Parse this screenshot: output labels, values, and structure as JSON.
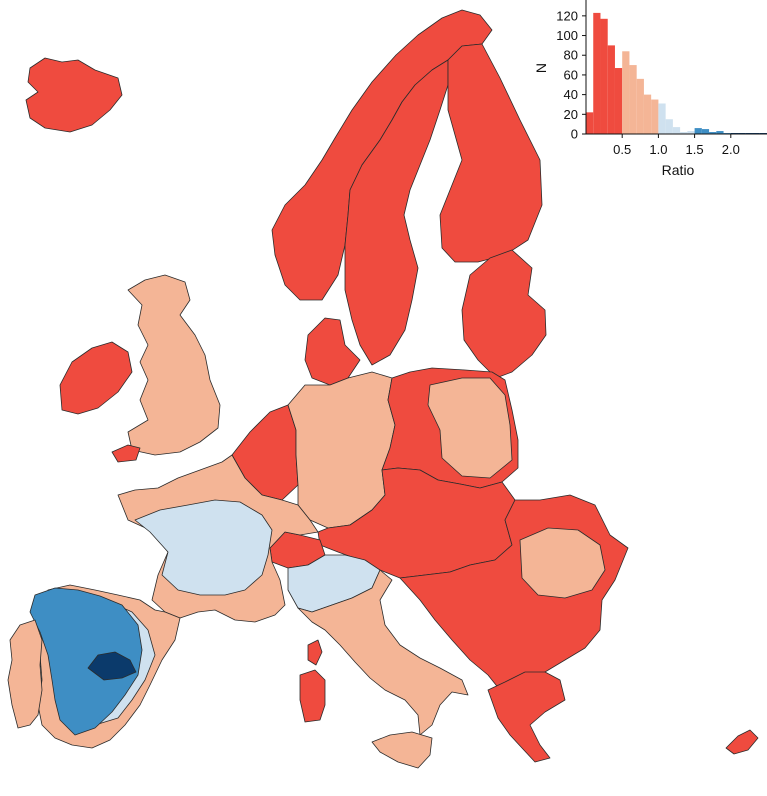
{
  "colors": {
    "red": "#ef4b3f",
    "salmon": "#f4b596",
    "light_blue": "#cfe1ef",
    "mid_blue": "#3e8ec4",
    "dark_blue": "#0b3a6b"
  },
  "chart_data": {
    "type": "bar",
    "xlabel": "Ratio",
    "ylabel": "N",
    "xlim": [
      0,
      2.5
    ],
    "ylim": [
      0,
      130
    ],
    "x_ticks": [
      "0.5",
      "1.0",
      "1.5",
      "2.0"
    ],
    "y_ticks": [
      "0",
      "20",
      "40",
      "60",
      "80",
      "100",
      "120"
    ],
    "bin_width": 0.1,
    "bins": [
      {
        "x": 0.05,
        "value": 22,
        "color": "red"
      },
      {
        "x": 0.15,
        "value": 123,
        "color": "red"
      },
      {
        "x": 0.25,
        "value": 117,
        "color": "red"
      },
      {
        "x": 0.35,
        "value": 90,
        "color": "red"
      },
      {
        "x": 0.45,
        "value": 67,
        "color": "red"
      },
      {
        "x": 0.55,
        "value": 84,
        "color": "salmon"
      },
      {
        "x": 0.65,
        "value": 70,
        "color": "salmon"
      },
      {
        "x": 0.75,
        "value": 56,
        "color": "salmon"
      },
      {
        "x": 0.85,
        "value": 40,
        "color": "salmon"
      },
      {
        "x": 0.95,
        "value": 35,
        "color": "salmon"
      },
      {
        "x": 1.05,
        "value": 31,
        "color": "light_blue"
      },
      {
        "x": 1.15,
        "value": 15,
        "color": "light_blue"
      },
      {
        "x": 1.25,
        "value": 7,
        "color": "light_blue"
      },
      {
        "x": 1.35,
        "value": 2,
        "color": "light_blue"
      },
      {
        "x": 1.45,
        "value": 3,
        "color": "light_blue"
      },
      {
        "x": 1.55,
        "value": 6,
        "color": "mid_blue"
      },
      {
        "x": 1.65,
        "value": 5,
        "color": "mid_blue"
      },
      {
        "x": 1.75,
        "value": 2,
        "color": "mid_blue"
      },
      {
        "x": 1.85,
        "value": 3,
        "color": "mid_blue"
      },
      {
        "x": 1.95,
        "value": 1,
        "color": "mid_blue"
      },
      {
        "x": 2.05,
        "value": 1,
        "color": "dark_blue"
      },
      {
        "x": 2.15,
        "value": 1,
        "color": "dark_blue"
      },
      {
        "x": 2.25,
        "value": 1,
        "color": "dark_blue"
      },
      {
        "x": 2.35,
        "value": 1,
        "color": "dark_blue"
      },
      {
        "x": 2.45,
        "value": 1,
        "color": "dark_blue"
      }
    ]
  },
  "map_regions": {
    "iceland": "red",
    "norway": "red",
    "sweden": "red",
    "finland": "red",
    "baltics": "red",
    "ireland": "red",
    "united_kingdom": "salmon",
    "wales": "red",
    "denmark": "red",
    "benelux": "red",
    "germany": "salmon",
    "poland": "red",
    "poland_interior": "salmon",
    "czechia_slovakia_hungary_austria": "red",
    "switzerland": "red",
    "france_east": "salmon",
    "france_central": "light_blue",
    "italy_north": "light_blue",
    "italy": "salmon",
    "sardinia": "red",
    "corsica": "red",
    "sicily": "salmon",
    "spain_south": "salmon",
    "spain_central": "light_blue",
    "spain_meseta": "mid_blue",
    "madrid": "dark_blue",
    "portugal": "salmon",
    "balkans": "red",
    "romania_interior": "salmon",
    "greece": "red",
    "cyprus": "red"
  }
}
